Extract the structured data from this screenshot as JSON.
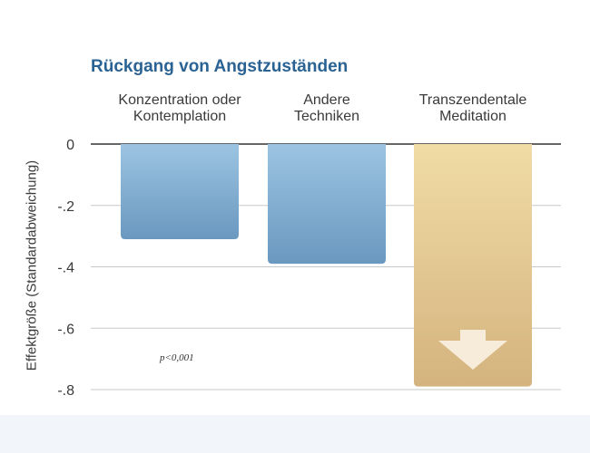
{
  "chart_data": {
    "type": "bar",
    "title": "Rückgang von Angstzuständen",
    "ylabel": "Effektgröße (Standardabweichung)",
    "xlabel": "",
    "categories": [
      "Konzentration oder\nKontemplation",
      "Andere\nTechniken",
      "Transzendentale\nMeditation"
    ],
    "values": [
      -0.31,
      -0.39,
      -0.79
    ],
    "ylim": [
      -0.8,
      0
    ],
    "yticks": [
      0,
      -0.2,
      -0.4,
      -0.6,
      -0.8
    ],
    "ytick_labels": [
      "0",
      "-.2",
      "-.4",
      "-.6",
      "-.8"
    ],
    "grid": true,
    "annotation": "p<0,001",
    "colors": {
      "blue_top": "#9cc4e2",
      "blue_bottom": "#6a98bf",
      "gold_top": "#f1dca6",
      "gold_bottom": "#d4b37e",
      "arrow": "#f7ecda",
      "title": "#2a6393"
    }
  }
}
